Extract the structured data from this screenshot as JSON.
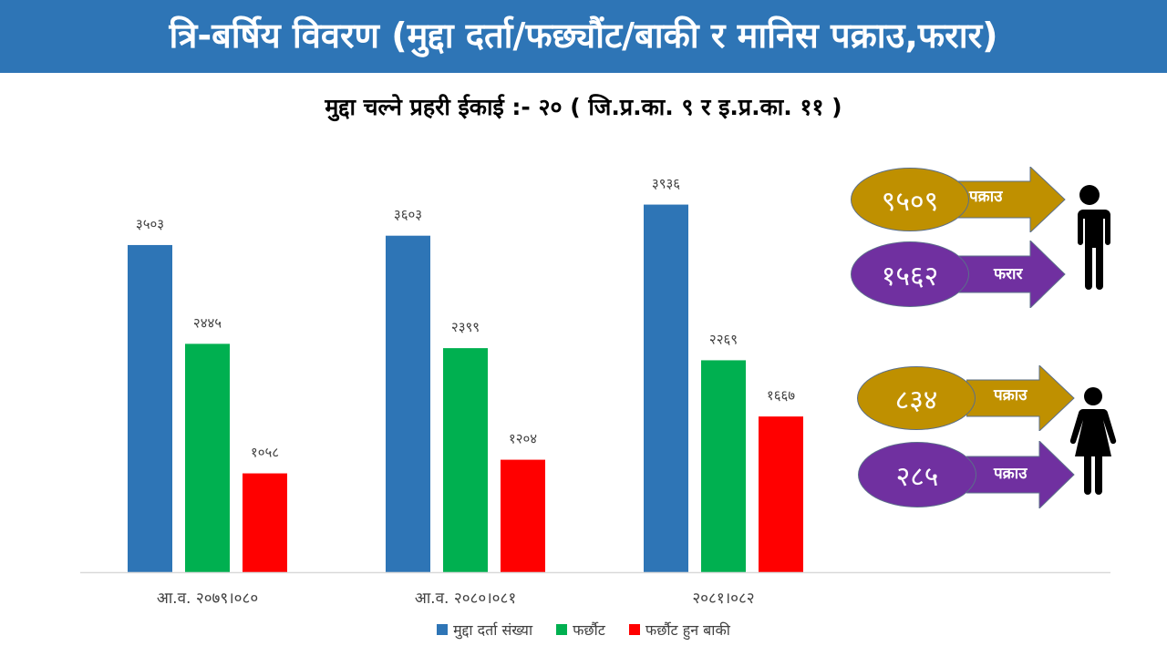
{
  "header": {
    "title": "त्रि-बर्षिय विवरण (मुद्दा दर्ता/फछ्यौंट/बाकी र मानिस पक्राउ,फरार)"
  },
  "subtitle": "मुद्दा चल्ने प्रहरी ईकाई :- २० ( जि.प्र.का. ९ र इ.प्र.का. ११ )",
  "colors": {
    "header": "#2e75b6",
    "series1": "#2e75b6",
    "series2": "#00b050",
    "series3": "#ff0000",
    "gold": "#bf9000",
    "purple": "#7030a0"
  },
  "chart_data": {
    "type": "bar",
    "title": "",
    "xlabel": "",
    "ylabel": "",
    "ylim": [
      0,
      4500
    ],
    "grid": false,
    "legend_position": "bottom",
    "categories": [
      "आ.व. २०७९।०८०",
      "आ.व. २०८०।०८१",
      "२०८१।०८२"
    ],
    "series": [
      {
        "name": "मुद्दा दर्ता संख्या",
        "color": "#2e75b6",
        "values": [
          3503,
          3603,
          3936
        ],
        "labels": [
          "३५०३",
          "३६०३",
          "३९३६"
        ]
      },
      {
        "name": "फर्छौट",
        "color": "#00b050",
        "values": [
          2445,
          2399,
          2269
        ],
        "labels": [
          "२४४५",
          "२३९९",
          "२२६९"
        ]
      },
      {
        "name": "फर्छौट हुन बाकी",
        "color": "#ff0000",
        "values": [
          1058,
          1204,
          1667
        ],
        "labels": [
          "१०५८",
          "१२०४",
          "१६६७"
        ]
      }
    ]
  },
  "persons": {
    "male": [
      {
        "value": "९५०९",
        "label": "पक्राउ",
        "color": "#bf9000"
      },
      {
        "value": "१५६२",
        "label": "फरार",
        "color": "#7030a0"
      }
    ],
    "female": [
      {
        "value": "८३४",
        "label": "पक्राउ",
        "color": "#bf9000"
      },
      {
        "value": "२८५",
        "label": "पक्राउ",
        "color": "#7030a0"
      }
    ]
  }
}
